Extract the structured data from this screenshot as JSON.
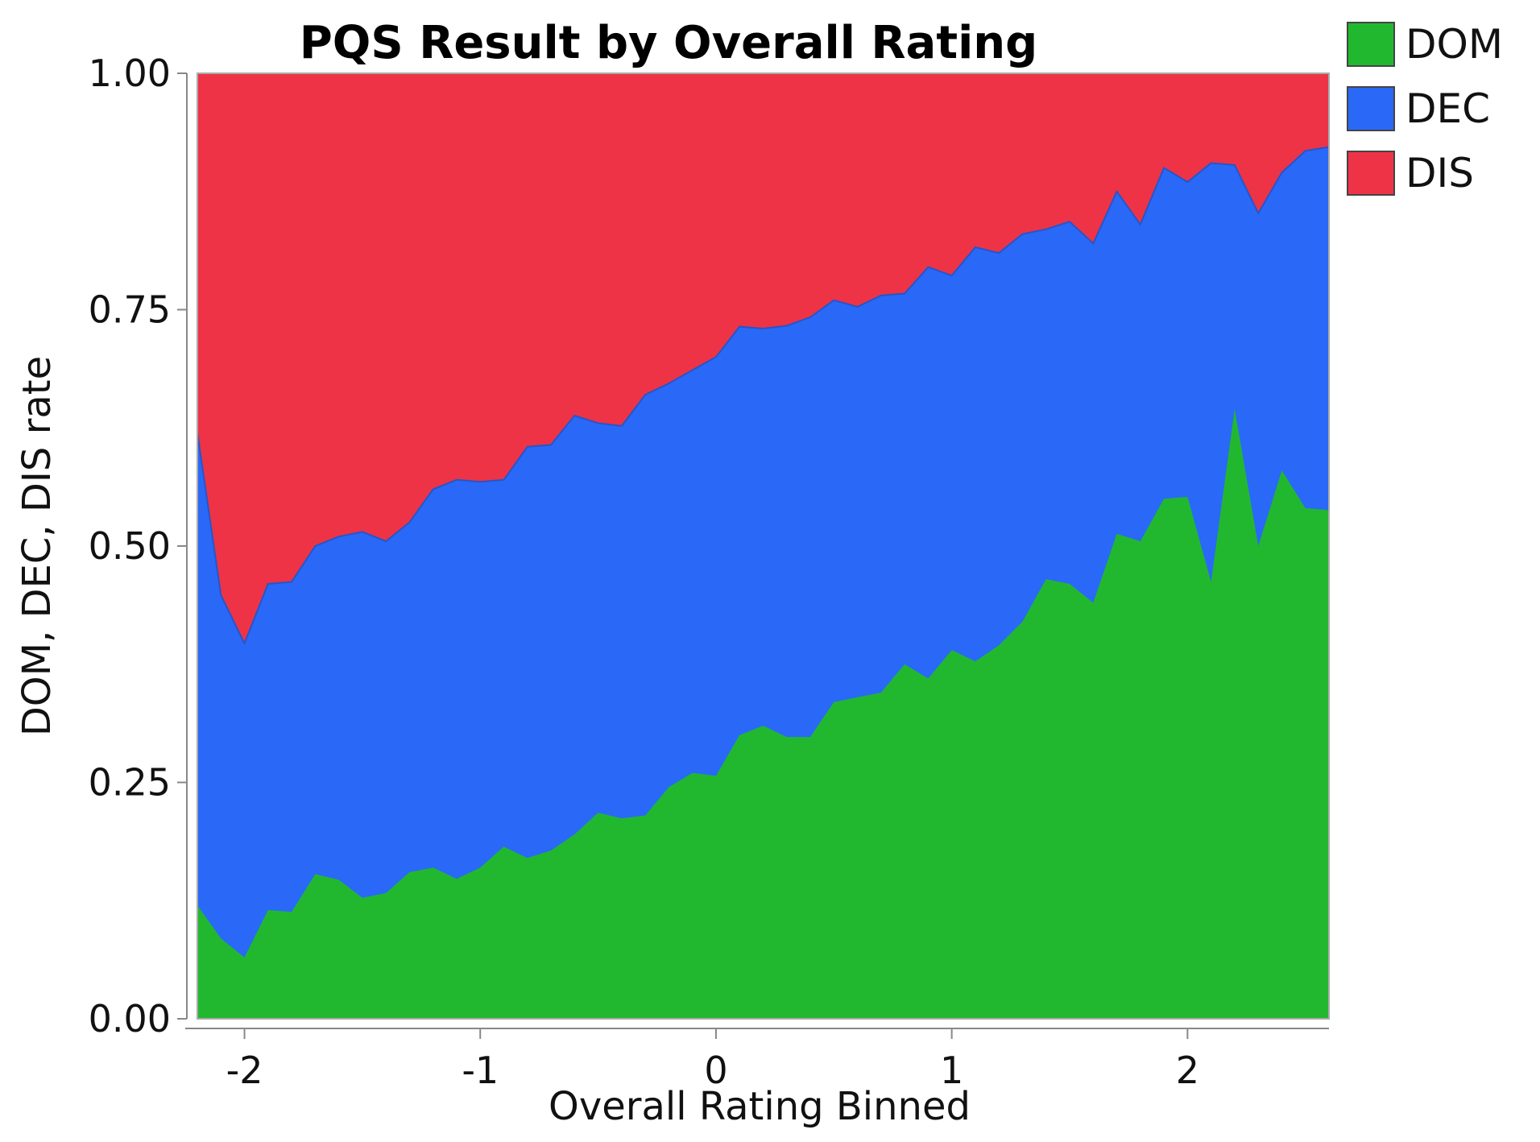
{
  "chart_data": {
    "type": "area",
    "stacked": true,
    "normalized": true,
    "title": "PQS Result by Overall Rating",
    "xlabel": "Overall Rating Binned",
    "ylabel": "DOM, DEC, DIS rate",
    "xlim": [
      -2.2,
      2.6
    ],
    "ylim": [
      0,
      1
    ],
    "x_ticks": [
      "-2",
      "-1",
      "0",
      "1",
      "2"
    ],
    "x_tick_values": [
      -2,
      -1,
      0,
      1,
      2
    ],
    "y_ticks": [
      "0.00",
      "0.25",
      "0.50",
      "0.75",
      "1.00"
    ],
    "y_tick_values": [
      0,
      0.25,
      0.5,
      0.75,
      1.0
    ],
    "grid": false,
    "legend_position": "top-right",
    "x": [
      -2.2,
      -2.1,
      -2.0,
      -1.9,
      -1.8,
      -1.7,
      -1.6,
      -1.5,
      -1.4,
      -1.3,
      -1.2,
      -1.1,
      -1.0,
      -0.9,
      -0.8,
      -0.7,
      -0.6,
      -0.5,
      -0.4,
      -0.3,
      -0.2,
      -0.1,
      0.0,
      0.1,
      0.2,
      0.3,
      0.4,
      0.5,
      0.6,
      0.7,
      0.8,
      0.9,
      1.0,
      1.1,
      1.2,
      1.3,
      1.4,
      1.5,
      1.6,
      1.7,
      1.8,
      1.9,
      2.0,
      2.1,
      2.2,
      2.3,
      2.4,
      2.5,
      2.6
    ],
    "series": [
      {
        "name": "DOM",
        "color": "#21b830",
        "cumulative_top": [
          0.12,
          0.085,
          0.065,
          0.115,
          0.113,
          0.153,
          0.147,
          0.128,
          0.133,
          0.155,
          0.16,
          0.148,
          0.16,
          0.182,
          0.17,
          0.178,
          0.195,
          0.218,
          0.212,
          0.215,
          0.245,
          0.26,
          0.257,
          0.3,
          0.31,
          0.298,
          0.298,
          0.335,
          0.34,
          0.345,
          0.375,
          0.36,
          0.39,
          0.378,
          0.395,
          0.42,
          0.465,
          0.46,
          0.44,
          0.513,
          0.505,
          0.55,
          0.552,
          0.462,
          0.645,
          0.5,
          0.58,
          0.54,
          0.538
        ]
      },
      {
        "name": "DEC",
        "color": "#2a68f8",
        "cumulative_top": [
          0.62,
          0.448,
          0.397,
          0.46,
          0.462,
          0.5,
          0.51,
          0.515,
          0.505,
          0.525,
          0.56,
          0.57,
          0.568,
          0.57,
          0.605,
          0.607,
          0.638,
          0.63,
          0.627,
          0.66,
          0.672,
          0.686,
          0.7,
          0.732,
          0.73,
          0.733,
          0.742,
          0.76,
          0.753,
          0.765,
          0.767,
          0.795,
          0.786,
          0.816,
          0.81,
          0.83,
          0.835,
          0.843,
          0.82,
          0.875,
          0.84,
          0.9,
          0.885,
          0.905,
          0.903,
          0.852,
          0.895,
          0.918,
          0.922
        ]
      },
      {
        "name": "DIS",
        "color": "#ee3347",
        "cumulative_top": [
          1.0,
          1.0,
          1.0,
          1.0,
          1.0,
          1.0,
          1.0,
          1.0,
          1.0,
          1.0,
          1.0,
          1.0,
          1.0,
          1.0,
          1.0,
          1.0,
          1.0,
          1.0,
          1.0,
          1.0,
          1.0,
          1.0,
          1.0,
          1.0,
          1.0,
          1.0,
          1.0,
          1.0,
          1.0,
          1.0,
          1.0,
          1.0,
          1.0,
          1.0,
          1.0,
          1.0,
          1.0,
          1.0,
          1.0,
          1.0,
          1.0,
          1.0,
          1.0,
          1.0,
          1.0,
          1.0,
          1.0,
          1.0,
          1.0
        ]
      }
    ],
    "legend": [
      {
        "label": "DOM",
        "color": "#21b830"
      },
      {
        "label": "DEC",
        "color": "#2a68f8"
      },
      {
        "label": "DIS",
        "color": "#ee3347"
      }
    ]
  }
}
